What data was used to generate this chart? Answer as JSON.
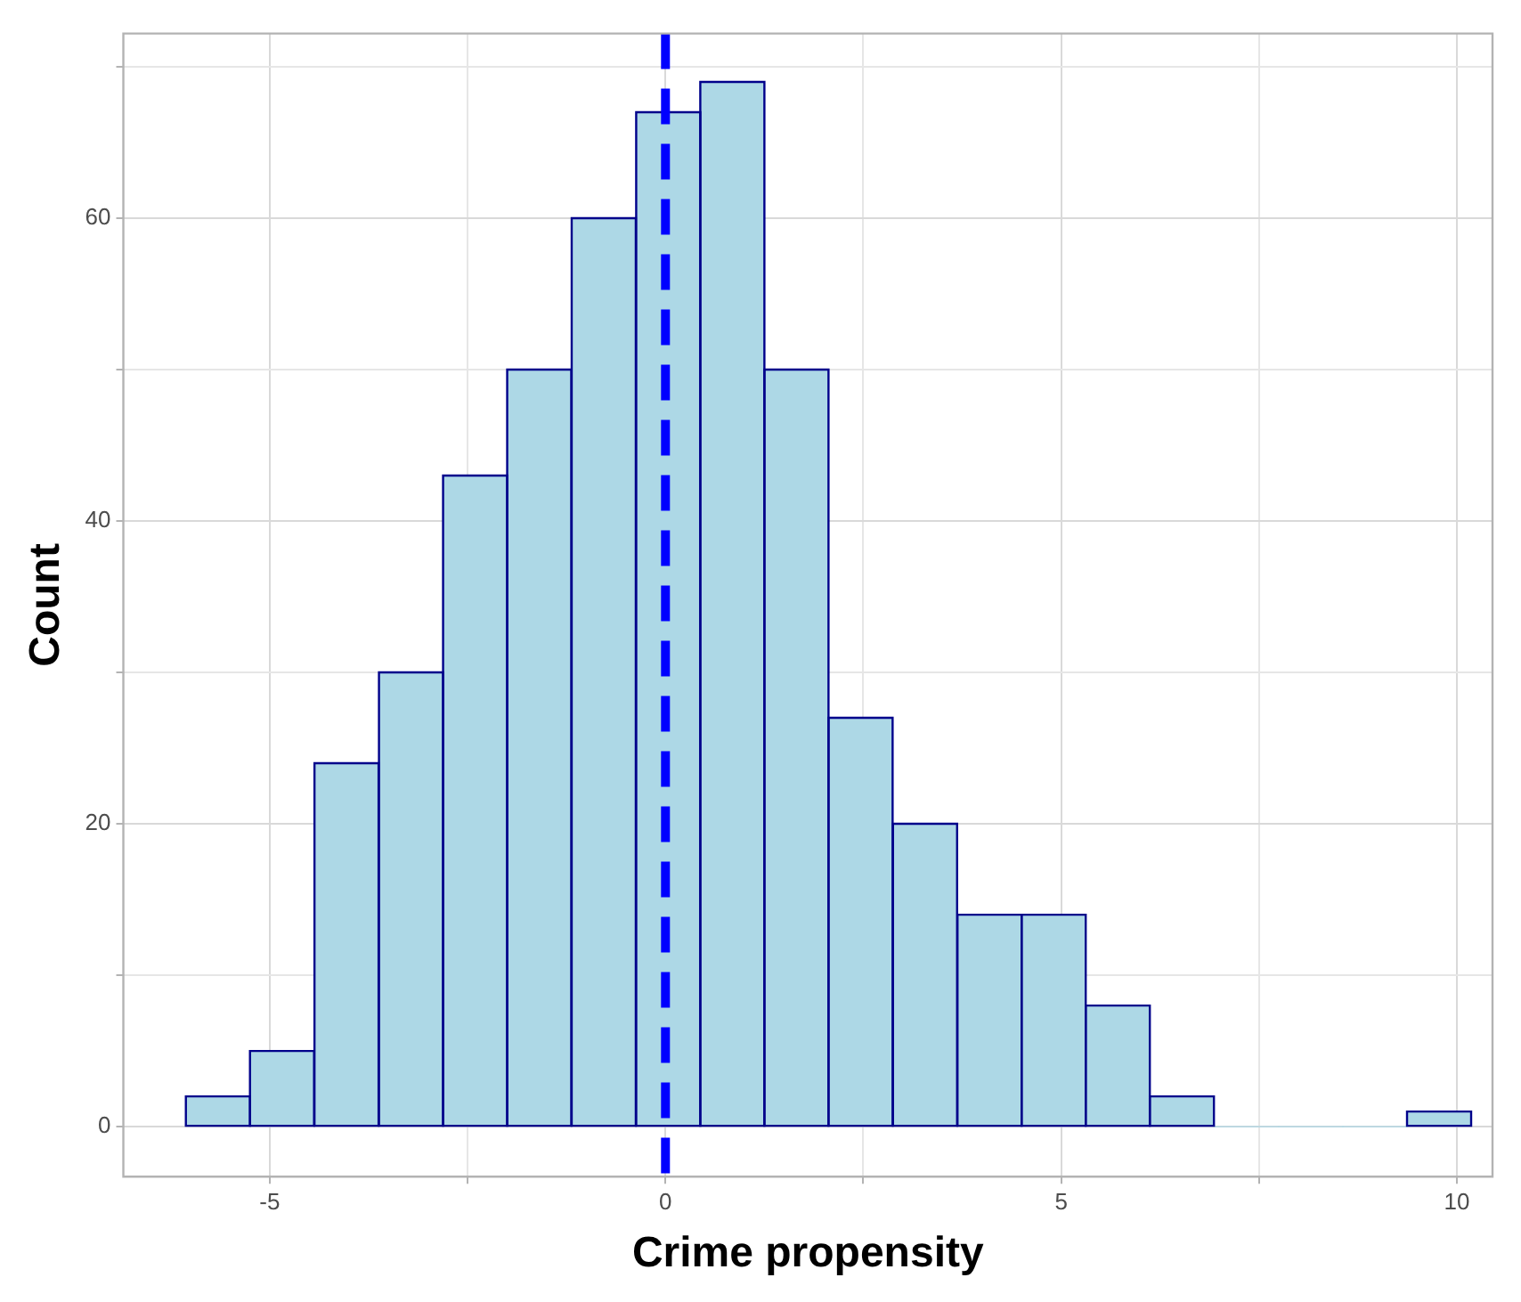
{
  "chart_data": {
    "type": "histogram",
    "xlabel": "Crime propensity",
    "ylabel": "Count",
    "bins": [
      -6.06,
      -5.25,
      -4.44,
      -3.62,
      -2.81,
      -2.0,
      -1.19,
      -0.37,
      0.44,
      1.25,
      2.06,
      2.87,
      3.69,
      4.5,
      5.31,
      6.12,
      6.93,
      7.75,
      8.56,
      9.37,
      10.18
    ],
    "values": [
      2,
      5,
      24,
      30,
      43,
      50,
      60,
      67,
      69,
      50,
      27,
      20,
      14,
      14,
      8,
      2,
      0,
      0,
      0,
      1
    ],
    "color": "#add8e6",
    "xlim": [
      -6.85,
      10.45
    ],
    "ylim": [
      -3.3,
      72.2
    ],
    "xticks": [
      -5,
      {
        "value": -2.5,
        "label": null
      },
      0,
      {
        "value": 2.5,
        "label": null
      },
      5,
      {
        "value": 7.5,
        "label": null
      },
      10
    ],
    "yticks": [
      0,
      {
        "value": 10,
        "label": null
      },
      20,
      {
        "value": 30,
        "label": null
      },
      40,
      {
        "value": 50,
        "label": null
      },
      60,
      {
        "value": 70,
        "label": null
      }
    ],
    "grid": true,
    "ref_lines": [
      {
        "axis": "x",
        "value": 0,
        "color": "#0000ff",
        "line_style": "dashed"
      }
    ]
  }
}
